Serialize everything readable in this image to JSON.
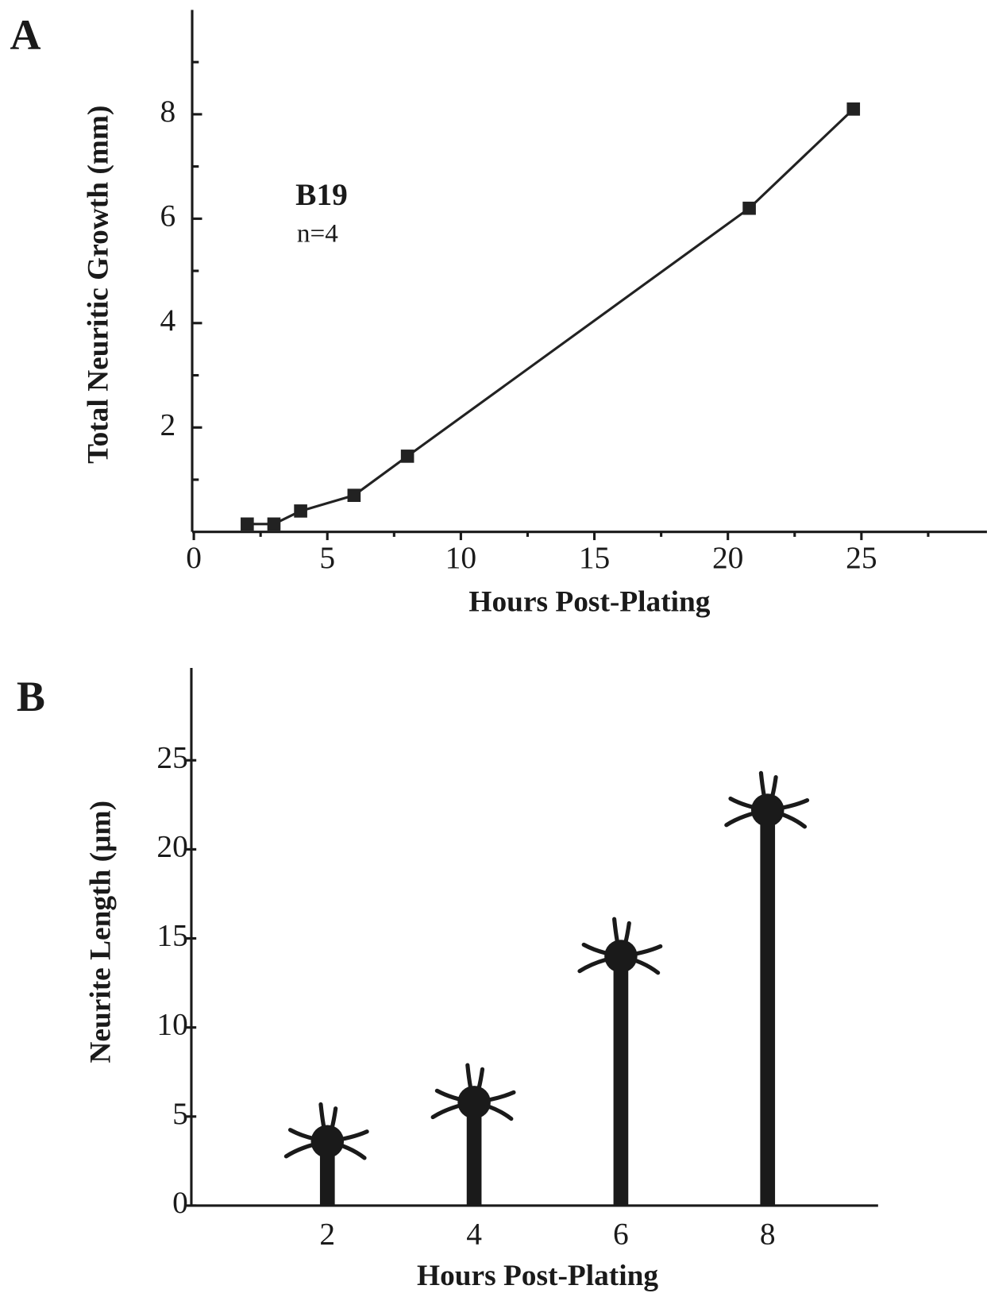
{
  "chart_data": [
    {
      "type": "line",
      "panel_label": "A",
      "xlabel": "Hours Post-Plating",
      "ylabel": "Total Neuritic Growth (mm)",
      "annotations": [
        "B19",
        "n=4"
      ],
      "x": [
        2,
        3,
        4,
        6,
        8,
        20.8,
        24.7
      ],
      "values": [
        0.15,
        0.15,
        0.4,
        0.7,
        1.45,
        6.2,
        8.1
      ],
      "color": "#222222",
      "xlim": [
        0,
        29.7
      ],
      "xticks": [
        0,
        5,
        10,
        15,
        20,
        25
      ],
      "xticks_minor": [
        2.5,
        7.5,
        12.5,
        17.5,
        22.5,
        27.5
      ],
      "ylim": [
        0,
        10
      ],
      "yticks": [
        2,
        4,
        6,
        8
      ],
      "yticks_minor": [
        1,
        3,
        5,
        7,
        9
      ]
    },
    {
      "type": "bar",
      "panel_label": "B",
      "xlabel": "Hours Post-Plating",
      "ylabel": "Neurite Length (µm)",
      "categories": [
        "2",
        "4",
        "6",
        "8"
      ],
      "values": [
        3.6,
        5.8,
        14,
        22.2
      ],
      "color": "#1a1a1a",
      "ylim": [
        0,
        30
      ],
      "yticks": [
        0,
        5,
        10,
        15,
        20,
        25
      ]
    }
  ]
}
